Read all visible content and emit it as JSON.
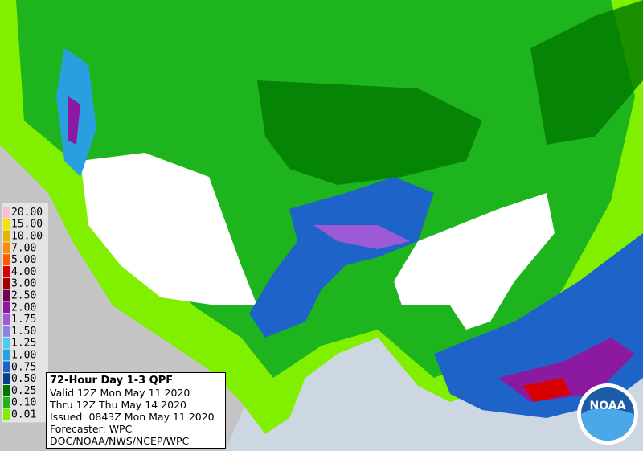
{
  "legend": [
    {
      "label": "20.00",
      "color": "#fcbfcf"
    },
    {
      "label": "15.00",
      "color": "#f2e600"
    },
    {
      "label": "10.00",
      "color": "#e6b400"
    },
    {
      "label": "7.00",
      "color": "#ff8c00"
    },
    {
      "label": "5.00",
      "color": "#ff5a00"
    },
    {
      "label": "4.00",
      "color": "#d80000"
    },
    {
      "label": "3.00",
      "color": "#a00000"
    },
    {
      "label": "2.50",
      "color": "#780050"
    },
    {
      "label": "2.00",
      "color": "#8c1aa0"
    },
    {
      "label": "1.75",
      "color": "#9e5ad6"
    },
    {
      "label": "1.50",
      "color": "#8c82e6"
    },
    {
      "label": "1.25",
      "color": "#50c8f0"
    },
    {
      "label": "1.00",
      "color": "#28a0e0"
    },
    {
      "label": "0.75",
      "color": "#1e64c8"
    },
    {
      "label": "0.50",
      "color": "#0a3c8c"
    },
    {
      "label": "0.25",
      "color": "#007800"
    },
    {
      "label": "0.10",
      "color": "#1eb41e"
    },
    {
      "label": "0.01",
      "color": "#80f000"
    }
  ],
  "info": {
    "title": "72-Hour Day 1-3 QPF",
    "lines": [
      "Valid 12Z Mon May 11 2020",
      "Thru 12Z Thu May 14 2020",
      "Issued: 0843Z Mon May 11 2020",
      "Forecaster: WPC",
      "DOC/NOAA/NWS/NCEP/WPC"
    ]
  },
  "logo": "NOAA"
}
